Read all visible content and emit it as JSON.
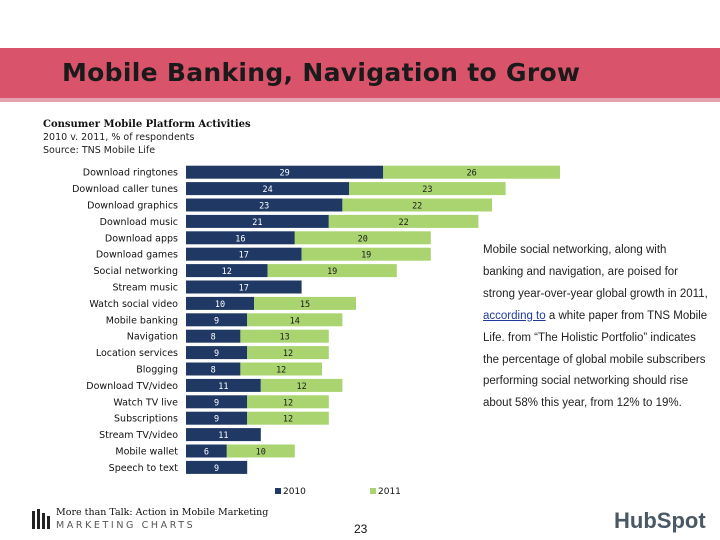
{
  "slide": {
    "title": "Mobile Banking, Navigation to Grow",
    "page_number": "23"
  },
  "chart_data": {
    "type": "bar",
    "orientation": "horizontal",
    "stacked": true,
    "title": "Consumer Mobile Platform Activities",
    "subtitle": "2010 v. 2011, % of respondents",
    "source": "Source: TNS Mobile Life",
    "legend_position": "bottom",
    "categories": [
      "Download ringtones",
      "Download caller tunes",
      "Download graphics",
      "Download music",
      "Download apps",
      "Download games",
      "Social networking",
      "Stream music",
      "Watch social video",
      "Mobile banking",
      "Navigation",
      "Location services",
      "Blogging",
      "Download TV/video",
      "Watch TV live",
      "Subscriptions",
      "Stream TV/video",
      "Mobile wallet",
      "Speech to text"
    ],
    "series": [
      {
        "name": "2010",
        "color": "#1f3864",
        "values": [
          29,
          24,
          23,
          21,
          16,
          17,
          12,
          17,
          10,
          9,
          8,
          9,
          8,
          11,
          9,
          9,
          11,
          6,
          9
        ]
      },
      {
        "name": "2011",
        "color": "#a9d46f",
        "values": [
          26,
          23,
          22,
          22,
          20,
          19,
          19,
          null,
          15,
          14,
          13,
          12,
          12,
          12,
          12,
          12,
          null,
          10,
          null
        ]
      }
    ]
  },
  "note": {
    "text_before": "Mobile social networking, along with banking and navigation, are poised for strong year-over-year global growth in 2011, ",
    "link_text": "according to",
    "text_after": " a white paper from TNS Mobile Life. from “The Holistic Portfolio” indicates the percentage of global mobile subscribers performing social networking should rise about 58% this year, from 12% to 19%."
  },
  "footer": {
    "line1": "More than Talk: Action in Mobile Marketing",
    "line2": "MARKETING CHARTS",
    "brand": "HubSpot"
  }
}
